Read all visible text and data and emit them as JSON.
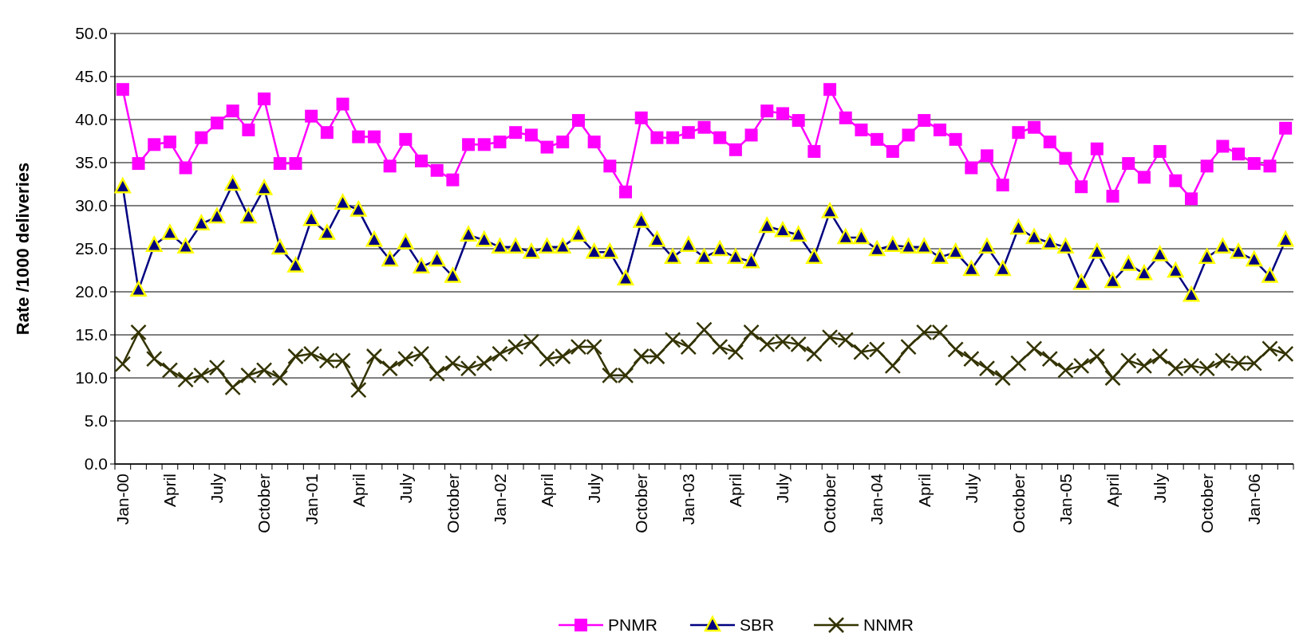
{
  "chart_data": {
    "type": "line",
    "ylabel": "Rate /1000 deliveries",
    "categories": [
      "Jan-00",
      null,
      null,
      "April",
      null,
      null,
      "July",
      null,
      null,
      "October",
      null,
      null,
      "Jan-01",
      null,
      null,
      "April",
      null,
      null,
      "July",
      null,
      null,
      "October",
      null,
      null,
      "Jan-02",
      null,
      null,
      "April",
      null,
      null,
      "July",
      null,
      null,
      "October",
      null,
      null,
      "Jan-03",
      null,
      null,
      "April",
      null,
      null,
      "July",
      null,
      null,
      "October",
      null,
      null,
      "Jan-04",
      null,
      null,
      "April",
      null,
      null,
      "July",
      null,
      null,
      "October",
      null,
      null,
      "Jan-05",
      null,
      null,
      "April",
      null,
      null,
      "July",
      null,
      null,
      "October",
      null,
      null,
      "Jan-06",
      null,
      null
    ],
    "series": [
      {
        "name": "PNMR",
        "color": "#ff00ff",
        "marker": "square",
        "values": [
          43.5,
          34.9,
          37.1,
          37.4,
          34.4,
          37.9,
          39.6,
          41.0,
          38.8,
          42.4,
          34.9,
          34.9,
          40.4,
          38.5,
          41.8,
          38.0,
          38.0,
          34.6,
          37.7,
          35.2,
          34.1,
          33.0,
          37.1,
          37.1,
          37.4,
          38.5,
          38.2,
          36.8,
          37.4,
          39.9,
          37.4,
          34.6,
          31.6,
          40.2,
          37.9,
          37.9,
          38.5,
          39.1,
          37.9,
          36.5,
          38.2,
          41.0,
          40.7,
          39.9,
          36.3,
          43.5,
          40.2,
          38.8,
          37.7,
          36.3,
          38.2,
          39.9,
          38.8,
          37.7,
          34.4,
          35.8,
          32.4,
          38.5,
          39.1,
          37.4,
          35.5,
          32.2,
          36.6,
          31.1,
          34.9,
          33.3,
          36.3,
          32.9,
          30.8,
          34.6,
          36.9,
          36.0,
          34.9,
          34.6,
          39.0
        ]
      },
      {
        "name": "SBR",
        "color": "#000080",
        "marker": "triangle",
        "values": [
          32.2,
          20.2,
          25.4,
          26.8,
          25.2,
          27.9,
          28.7,
          32.5,
          28.7,
          32.0,
          25.1,
          23.0,
          28.4,
          26.8,
          30.3,
          29.5,
          26.0,
          23.7,
          25.7,
          22.9,
          23.7,
          21.8,
          26.6,
          26.0,
          25.2,
          25.2,
          24.6,
          25.2,
          25.2,
          26.6,
          24.6,
          24.6,
          21.5,
          28.2,
          26.0,
          24.0,
          25.4,
          24.0,
          24.9,
          24.0,
          23.5,
          27.6,
          27.1,
          26.6,
          24.0,
          29.3,
          26.3,
          26.3,
          24.9,
          25.4,
          25.2,
          25.2,
          24.0,
          24.6,
          22.6,
          25.2,
          22.6,
          27.4,
          26.3,
          25.7,
          25.2,
          21.0,
          24.6,
          21.2,
          23.2,
          22.1,
          24.3,
          22.4,
          19.6,
          24.0,
          25.2,
          24.6,
          23.7,
          21.8,
          26.0
        ]
      },
      {
        "name": "NNMR",
        "color": "#333300",
        "marker": "cross",
        "values": [
          11.6,
          15.3,
          12.2,
          10.9,
          9.8,
          10.3,
          11.2,
          8.9,
          10.3,
          10.9,
          10.0,
          12.5,
          12.8,
          12.0,
          12.0,
          8.6,
          12.5,
          11.1,
          12.2,
          12.8,
          10.5,
          11.7,
          11.1,
          11.7,
          12.8,
          13.6,
          14.2,
          12.2,
          12.5,
          13.6,
          13.6,
          10.3,
          10.3,
          12.5,
          12.5,
          14.4,
          13.6,
          15.6,
          13.6,
          13.0,
          15.3,
          13.9,
          14.2,
          13.9,
          12.8,
          14.7,
          14.4,
          13.0,
          13.3,
          11.4,
          13.6,
          15.3,
          15.3,
          13.3,
          12.2,
          11.1,
          10.0,
          11.7,
          13.4,
          12.2,
          10.9,
          11.4,
          12.5,
          10.0,
          12.0,
          11.4,
          12.5,
          11.1,
          11.4,
          11.1,
          12.0,
          11.7,
          11.7,
          13.4,
          12.8
        ]
      }
    ],
    "ylim": [
      0,
      50
    ],
    "yticks": [
      {
        "value": 0,
        "label": "0.0"
      },
      {
        "value": 5,
        "label": "5.0"
      },
      {
        "value": 10,
        "label": "10.0"
      },
      {
        "value": 15,
        "label": "15.0"
      },
      {
        "value": 20,
        "label": "20.0"
      },
      {
        "value": 25,
        "label": "25.0"
      },
      {
        "value": 30,
        "label": "30.0"
      },
      {
        "value": 35,
        "label": "35.0"
      },
      {
        "value": 40,
        "label": "40.0"
      },
      {
        "value": 45,
        "label": "45.0"
      },
      {
        "value": 50,
        "label": "50.0"
      }
    ],
    "grid": "y",
    "legend": "bottom"
  }
}
